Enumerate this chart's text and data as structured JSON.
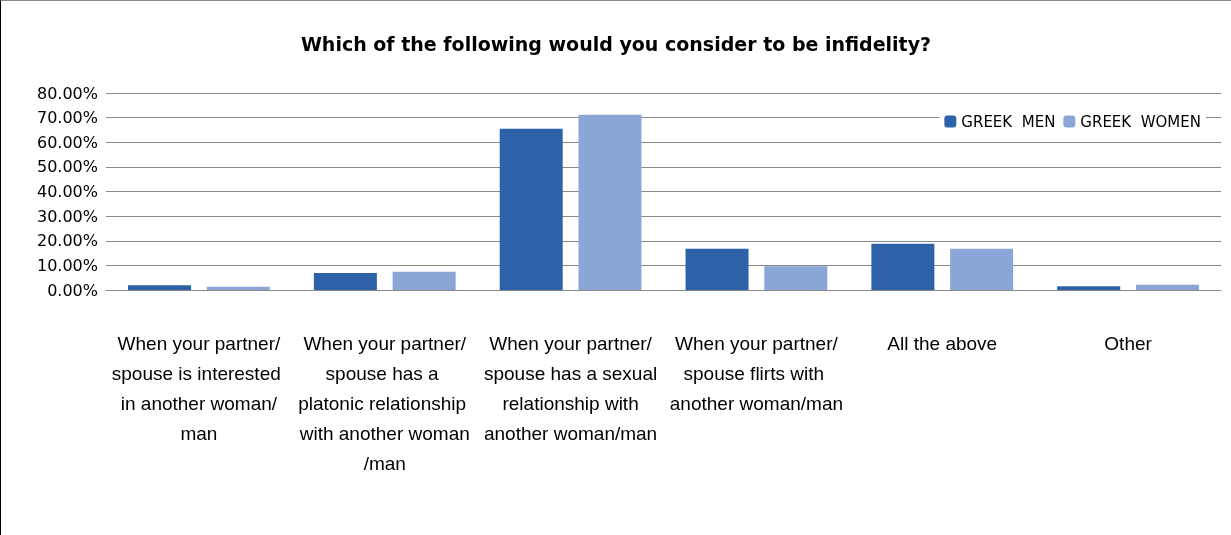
{
  "chart_data": {
    "type": "bar",
    "title": "Which of the following would you consider to be infidelity?",
    "categories": [
      "When your partner/spouse is interested in another woman/man",
      "When your partner/spouse has a platonic relationship with another woman/man",
      "When your partner/spouse has a sexual relationship with another woman/man",
      "When your partner/spouse flirts with another woman/man",
      "All the above",
      "Other"
    ],
    "series": [
      {
        "name": "GREEK  MEN",
        "color": "#2e62a8",
        "values": [
          1.9,
          6.9,
          65.5,
          16.8,
          18.8,
          1.5
        ]
      },
      {
        "name": "GREEK  WOMEN",
        "color": "#8aa6d6",
        "values": [
          1.3,
          7.4,
          71.2,
          9.6,
          16.8,
          2.1
        ]
      }
    ],
    "ylim": [
      0,
      80
    ],
    "yticks": [
      {
        "value": 0,
        "label": "0.00%"
      },
      {
        "value": 10,
        "label": "10.00%"
      },
      {
        "value": 20,
        "label": "20.00%"
      },
      {
        "value": 30,
        "label": "30.00%"
      },
      {
        "value": 40,
        "label": "40.00%"
      },
      {
        "value": 50,
        "label": "50.00%"
      },
      {
        "value": 60,
        "label": "60.00%"
      },
      {
        "value": 70,
        "label": "70.00%"
      },
      {
        "value": 80,
        "label": "80.00%"
      }
    ],
    "grid": "y",
    "legend": "top right"
  }
}
